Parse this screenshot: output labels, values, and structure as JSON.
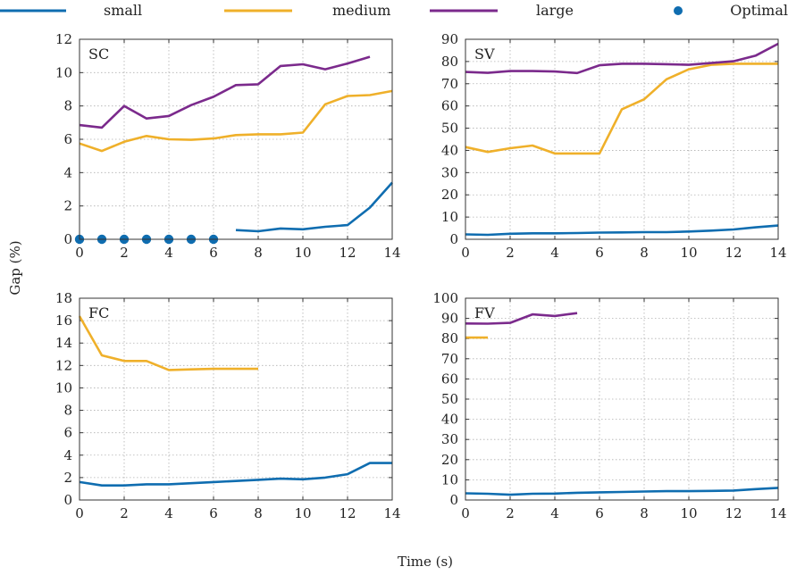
{
  "colors": {
    "small": "#0f6db0",
    "medium": "#efb02a",
    "large": "#7b2a8c",
    "optimal": "#0f6db0"
  },
  "legend": [
    {
      "key": "small",
      "label": "small",
      "kind": "line"
    },
    {
      "key": "medium",
      "label": "medium",
      "kind": "line"
    },
    {
      "key": "large",
      "label": "large",
      "kind": "line"
    },
    {
      "key": "optimal",
      "label": "Optimal",
      "kind": "marker"
    }
  ],
  "xlabel": "Time (s)",
  "ylabel": "Gap (%)",
  "chart_data": [
    {
      "type": "line",
      "title": "SC",
      "xlim": [
        0,
        14
      ],
      "ylim": [
        0,
        12
      ],
      "xticks": [
        0,
        2,
        4,
        6,
        8,
        10,
        12,
        14
      ],
      "yticks": [
        0,
        2,
        4,
        6,
        8,
        10,
        12
      ],
      "grid": true,
      "series": [
        {
          "name": "small",
          "x": [
            7,
            8,
            9,
            10,
            11,
            12,
            13,
            14
          ],
          "y": [
            0.55,
            0.48,
            0.65,
            0.6,
            0.75,
            0.85,
            1.9,
            3.4
          ]
        },
        {
          "name": "medium",
          "x": [
            0,
            1,
            2,
            3,
            4,
            5,
            6,
            7,
            8,
            9,
            10,
            11,
            12,
            13,
            14
          ],
          "y": [
            5.75,
            5.3,
            5.85,
            6.2,
            6.0,
            5.97,
            6.05,
            6.25,
            6.3,
            6.3,
            6.4,
            8.1,
            8.6,
            8.65,
            8.9
          ]
        },
        {
          "name": "large",
          "x": [
            0,
            1,
            2,
            3,
            4,
            5,
            6,
            7,
            8,
            9,
            10,
            11,
            12,
            13
          ],
          "y": [
            6.85,
            6.7,
            8.0,
            7.25,
            7.4,
            8.05,
            8.55,
            9.25,
            9.3,
            10.4,
            10.5,
            10.2,
            10.55,
            10.95
          ]
        },
        {
          "name": "Optimal",
          "kind": "marker",
          "x": [
            0,
            1,
            2,
            3,
            4,
            5,
            6
          ],
          "y": [
            0,
            0,
            0,
            0,
            0,
            0,
            0
          ]
        }
      ]
    },
    {
      "type": "line",
      "title": "SV",
      "xlim": [
        0,
        14
      ],
      "ylim": [
        0,
        90
      ],
      "xticks": [
        0,
        2,
        4,
        6,
        8,
        10,
        12,
        14
      ],
      "yticks": [
        0,
        10,
        20,
        30,
        40,
        50,
        60,
        70,
        80,
        90
      ],
      "grid": true,
      "series": [
        {
          "name": "small",
          "x": [
            0,
            1,
            2,
            3,
            4,
            5,
            6,
            7,
            8,
            9,
            10,
            11,
            12,
            13,
            14
          ],
          "y": [
            2.2,
            2.0,
            2.5,
            2.7,
            2.7,
            2.8,
            3.0,
            3.1,
            3.2,
            3.2,
            3.5,
            3.9,
            4.4,
            5.4,
            6.2
          ]
        },
        {
          "name": "medium",
          "x": [
            0,
            1,
            2,
            3,
            4,
            5,
            6,
            7,
            8,
            9,
            10,
            11,
            12,
            13,
            14
          ],
          "y": [
            41.5,
            39.3,
            41.0,
            42.2,
            38.6,
            38.6,
            38.6,
            58.5,
            63.0,
            72.0,
            76.5,
            78.5,
            79.0,
            79.0,
            79.0
          ]
        },
        {
          "name": "large",
          "x": [
            0,
            1,
            2,
            3,
            4,
            5,
            6,
            7,
            8,
            9,
            10,
            11,
            12,
            13,
            14
          ],
          "y": [
            75.3,
            74.9,
            75.7,
            75.7,
            75.5,
            74.8,
            78.3,
            79.0,
            79.0,
            78.8,
            78.5,
            79.3,
            80.1,
            82.7,
            88.0
          ]
        }
      ]
    },
    {
      "type": "line",
      "title": "FC",
      "xlim": [
        0,
        14
      ],
      "ylim": [
        0,
        18
      ],
      "xticks": [
        0,
        2,
        4,
        6,
        8,
        10,
        12,
        14
      ],
      "yticks": [
        0,
        2,
        4,
        6,
        8,
        10,
        12,
        14,
        16,
        18
      ],
      "grid": true,
      "series": [
        {
          "name": "small",
          "x": [
            0,
            1,
            2,
            3,
            4,
            5,
            6,
            7,
            8,
            9,
            10,
            11,
            12,
            13,
            14
          ],
          "y": [
            1.6,
            1.3,
            1.3,
            1.4,
            1.4,
            1.5,
            1.6,
            1.7,
            1.8,
            1.9,
            1.85,
            2.0,
            2.3,
            3.3,
            3.3
          ]
        },
        {
          "name": "medium",
          "x": [
            0,
            1,
            2,
            3,
            4,
            5,
            6,
            7,
            8
          ],
          "y": [
            16.4,
            12.9,
            12.4,
            12.4,
            11.6,
            11.65,
            11.7,
            11.7,
            11.7
          ]
        }
      ]
    },
    {
      "type": "line",
      "title": "FV",
      "xlim": [
        0,
        14
      ],
      "ylim": [
        0,
        100
      ],
      "xticks": [
        0,
        2,
        4,
        6,
        8,
        10,
        12,
        14
      ],
      "yticks": [
        0,
        10,
        20,
        30,
        40,
        50,
        60,
        70,
        80,
        90,
        100
      ],
      "grid": true,
      "series": [
        {
          "name": "small",
          "x": [
            0,
            1,
            2,
            3,
            4,
            5,
            6,
            7,
            8,
            9,
            10,
            11,
            12,
            13,
            14
          ],
          "y": [
            3.3,
            3.1,
            2.6,
            3.1,
            3.2,
            3.6,
            3.8,
            4.0,
            4.2,
            4.4,
            4.4,
            4.5,
            4.7,
            5.4,
            6.0
          ]
        },
        {
          "name": "medium",
          "x": [
            0,
            1
          ],
          "y": [
            80.5,
            80.5
          ]
        },
        {
          "name": "large",
          "x": [
            0,
            1,
            2,
            3,
            4,
            5
          ],
          "y": [
            87.5,
            87.4,
            87.8,
            92.0,
            91.2,
            92.6
          ]
        }
      ]
    }
  ]
}
